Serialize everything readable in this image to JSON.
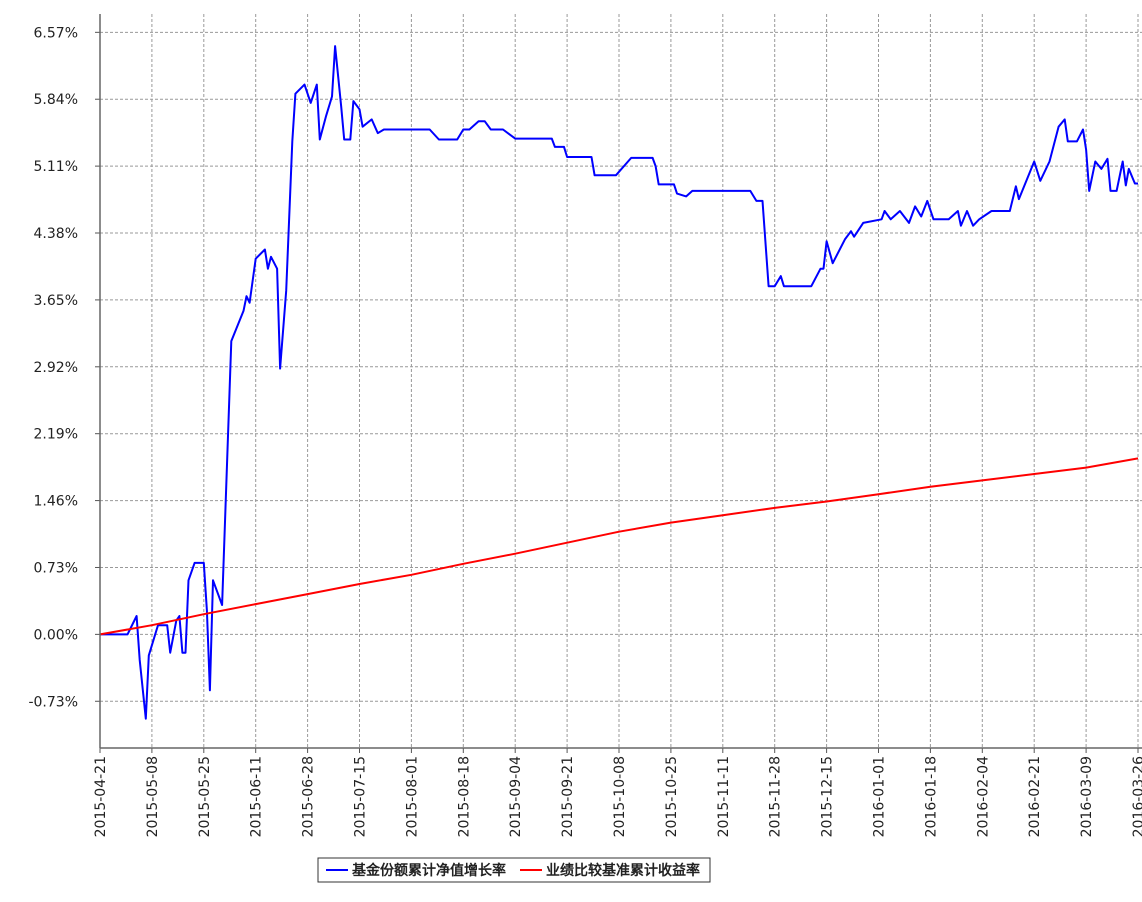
{
  "chart_data": {
    "type": "line",
    "xlim": [
      "2015-04-21",
      "2016-03-26"
    ],
    "xticks": [
      "2015-04-21",
      "2015-05-08",
      "2015-05-25",
      "2015-06-11",
      "2015-06-28",
      "2015-07-15",
      "2015-08-01",
      "2015-08-18",
      "2015-09-04",
      "2015-09-21",
      "2015-10-08",
      "2015-10-25",
      "2015-11-11",
      "2015-11-28",
      "2015-12-15",
      "2016-01-01",
      "2016-01-18",
      "2016-02-04",
      "2016-02-21",
      "2016-03-09",
      "2016-03-26"
    ],
    "ylim": [
      -1.24,
      6.77
    ],
    "yticks": [
      {
        "value": -0.73,
        "label": "-0.73%"
      },
      {
        "value": 0,
        "label": "0.00%"
      },
      {
        "value": 0.73,
        "label": "0.73%"
      },
      {
        "value": 1.46,
        "label": "1.46%"
      },
      {
        "value": 2.19,
        "label": "2.19%"
      },
      {
        "value": 2.92,
        "label": "2.92%"
      },
      {
        "value": 3.65,
        "label": "3.65%"
      },
      {
        "value": 4.38,
        "label": "4.38%"
      },
      {
        "value": 5.11,
        "label": "5.11%"
      },
      {
        "value": 5.84,
        "label": "5.84%"
      },
      {
        "value": 6.57,
        "label": "6.57%"
      }
    ],
    "grid": true,
    "legend": "bottom",
    "series": [
      {
        "name": "基金份额累计净值增长率",
        "color": "#0000ff",
        "x": [
          "2015-04-21",
          "2015-04-30",
          "2015-05-03",
          "2015-05-04",
          "2015-05-06",
          "2015-05-07",
          "2015-05-10",
          "2015-05-13",
          "2015-05-14",
          "2015-05-16",
          "2015-05-17",
          "2015-05-18",
          "2015-05-19",
          "2015-05-20",
          "2015-05-22",
          "2015-05-25",
          "2015-05-26",
          "2015-05-27",
          "2015-05-28",
          "2015-05-31",
          "2015-06-03",
          "2015-06-07",
          "2015-06-08",
          "2015-06-09",
          "2015-06-11",
          "2015-06-14",
          "2015-06-15",
          "2015-06-16",
          "2015-06-18",
          "2015-06-19",
          "2015-06-21",
          "2015-06-23",
          "2015-06-24",
          "2015-06-27",
          "2015-06-29",
          "2015-07-01",
          "2015-07-02",
          "2015-07-04",
          "2015-07-06",
          "2015-07-07",
          "2015-07-09",
          "2015-07-10",
          "2015-07-12",
          "2015-07-13",
          "2015-07-15",
          "2015-07-16",
          "2015-07-19",
          "2015-07-21",
          "2015-07-23",
          "2015-08-07",
          "2015-08-10",
          "2015-08-16",
          "2015-08-18",
          "2015-08-20",
          "2015-08-23",
          "2015-08-25",
          "2015-08-27",
          "2015-08-31",
          "2015-09-04",
          "2015-09-16",
          "2015-09-17",
          "2015-09-20",
          "2015-09-21",
          "2015-09-29",
          "2015-09-30",
          "2015-10-07",
          "2015-10-12",
          "2015-10-19",
          "2015-10-20",
          "2015-10-21",
          "2015-10-26",
          "2015-10-27",
          "2015-10-30",
          "2015-11-01",
          "2015-11-20",
          "2015-11-22",
          "2015-11-24",
          "2015-11-26",
          "2015-11-28",
          "2015-11-30",
          "2015-12-01",
          "2015-12-10",
          "2015-12-13",
          "2015-12-14",
          "2015-12-15",
          "2015-12-17",
          "2015-12-21",
          "2015-12-23",
          "2015-12-24",
          "2015-12-27",
          "2016-01-02",
          "2016-01-03",
          "2016-01-05",
          "2016-01-08",
          "2016-01-11",
          "2016-01-13",
          "2016-01-15",
          "2016-01-17",
          "2016-01-19",
          "2016-01-24",
          "2016-01-27",
          "2016-01-28",
          "2016-01-30",
          "2016-02-01",
          "2016-02-03",
          "2016-02-07",
          "2016-02-13",
          "2016-02-15",
          "2016-02-16",
          "2016-02-21",
          "2016-02-23",
          "2016-02-26",
          "2016-02-29",
          "2016-03-02",
          "2016-03-03",
          "2016-03-06",
          "2016-03-08",
          "2016-03-09",
          "2016-03-10",
          "2016-03-12",
          "2016-03-14",
          "2016-03-16",
          "2016-03-17",
          "2016-03-19",
          "2016-03-21",
          "2016-03-22",
          "2016-03-23",
          "2016-03-25",
          "2016-03-26"
        ],
        "values": [
          0,
          0,
          0.2,
          -0.28,
          -0.92,
          -0.23,
          0.1,
          0.1,
          -0.2,
          0.15,
          0.2,
          -0.2,
          -0.2,
          0.59,
          0.78,
          0.78,
          0.26,
          -0.61,
          0.59,
          0.32,
          3.2,
          3.53,
          3.69,
          3.62,
          4.1,
          4.2,
          3.99,
          4.12,
          3.99,
          2.9,
          3.75,
          5.38,
          5.9,
          6.0,
          5.8,
          6.0,
          5.4,
          5.65,
          5.87,
          6.42,
          5.76,
          5.4,
          5.4,
          5.82,
          5.73,
          5.54,
          5.62,
          5.47,
          5.51,
          5.51,
          5.4,
          5.4,
          5.51,
          5.51,
          5.6,
          5.6,
          5.51,
          5.51,
          5.41,
          5.41,
          5.32,
          5.32,
          5.21,
          5.21,
          5.01,
          5.01,
          5.2,
          5.2,
          5.11,
          4.91,
          4.91,
          4.81,
          4.78,
          4.84,
          4.84,
          4.73,
          4.73,
          3.8,
          3.8,
          3.91,
          3.8,
          3.8,
          3.99,
          3.99,
          4.29,
          4.05,
          4.31,
          4.4,
          4.34,
          4.49,
          4.53,
          4.62,
          4.53,
          4.62,
          4.49,
          4.67,
          4.56,
          4.73,
          4.53,
          4.53,
          4.62,
          4.46,
          4.62,
          4.46,
          4.53,
          4.62,
          4.62,
          4.89,
          4.75,
          5.16,
          4.95,
          5.16,
          5.54,
          5.62,
          5.38,
          5.38,
          5.51,
          5.29,
          4.84,
          5.16,
          5.08,
          5.19,
          4.84,
          4.84,
          5.16,
          4.9,
          5.08,
          4.92,
          4.92
        ]
      },
      {
        "name": "业绩比较基准累计收益率",
        "color": "#ff0000",
        "x": [
          "2015-04-21",
          "2015-05-08",
          "2015-05-25",
          "2015-06-11",
          "2015-06-28",
          "2015-07-15",
          "2015-08-01",
          "2015-08-18",
          "2015-09-04",
          "2015-09-21",
          "2015-10-08",
          "2015-10-25",
          "2015-11-11",
          "2015-11-28",
          "2015-12-15",
          "2016-01-01",
          "2016-01-18",
          "2016-02-04",
          "2016-02-21",
          "2016-03-09",
          "2016-03-26"
        ],
        "values": [
          0,
          0.1,
          0.22,
          0.33,
          0.44,
          0.55,
          0.65,
          0.77,
          0.88,
          1.0,
          1.12,
          1.22,
          1.3,
          1.38,
          1.45,
          1.53,
          1.61,
          1.68,
          1.75,
          1.82,
          1.92
        ]
      }
    ]
  }
}
